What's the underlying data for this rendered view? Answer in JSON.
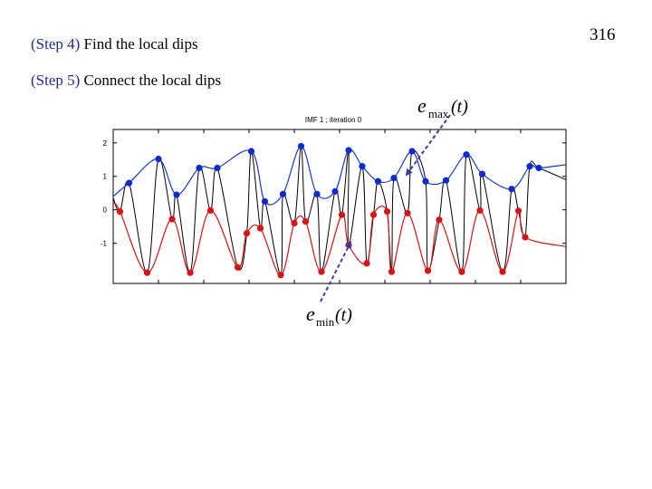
{
  "page_number": "316",
  "steps": [
    {
      "tag": "(Step 4)",
      "text": "Find the local dips"
    },
    {
      "tag": "(Step 5)",
      "text": "Connect the local dips"
    }
  ],
  "colors": {
    "signal": "#000000",
    "upper_envelope": "#1a37c8",
    "lower_envelope": "#d21414",
    "max_marker": "#0a2ad8",
    "min_marker": "#e01010",
    "step_tag": "#1f2a8c",
    "arrow": "#3a3aa8"
  },
  "chart_data": {
    "type": "line",
    "title": "IMF 1 ;   iteration 0",
    "xlabel": "",
    "ylabel": "",
    "ylim": [
      -2.2,
      2.4
    ],
    "xlim": [
      0,
      10
    ],
    "yticks": [
      "2",
      "1",
      "0",
      "-1"
    ],
    "ytick_values": [
      2,
      1,
      0,
      -1
    ],
    "grid": false,
    "series": [
      {
        "role": "local maxima",
        "points": [
          [
            0.35,
            0.8
          ],
          [
            1.0,
            1.52
          ],
          [
            1.4,
            0.45
          ],
          [
            1.9,
            1.25
          ],
          [
            2.3,
            1.25
          ],
          [
            3.05,
            1.75
          ],
          [
            3.35,
            0.25
          ],
          [
            3.75,
            0.47
          ],
          [
            4.15,
            1.9
          ],
          [
            4.5,
            0.47
          ],
          [
            4.9,
            0.55
          ],
          [
            5.2,
            1.78
          ],
          [
            5.5,
            1.3
          ],
          [
            5.85,
            0.85
          ],
          [
            6.2,
            0.95
          ],
          [
            6.6,
            1.75
          ],
          [
            6.9,
            0.85
          ],
          [
            7.35,
            0.88
          ],
          [
            7.8,
            1.65
          ],
          [
            8.15,
            1.07
          ],
          [
            8.8,
            0.62
          ],
          [
            9.2,
            1.3
          ],
          [
            9.4,
            1.25
          ]
        ]
      },
      {
        "role": "local minima",
        "points": [
          [
            0.15,
            -0.05
          ],
          [
            0.75,
            -1.88
          ],
          [
            1.3,
            -0.28
          ],
          [
            1.7,
            -1.88
          ],
          [
            2.15,
            -0.02
          ],
          [
            2.75,
            -1.72
          ],
          [
            2.95,
            -0.7
          ],
          [
            3.25,
            -0.55
          ],
          [
            3.7,
            -1.95
          ],
          [
            4.0,
            -0.4
          ],
          [
            4.25,
            -0.35
          ],
          [
            4.6,
            -1.85
          ],
          [
            5.05,
            -0.15
          ],
          [
            5.2,
            -1.05
          ],
          [
            5.6,
            -1.6
          ],
          [
            5.75,
            -0.15
          ],
          [
            6.05,
            -0.05
          ],
          [
            6.15,
            -1.85
          ],
          [
            6.5,
            -0.1
          ],
          [
            6.95,
            -1.82
          ],
          [
            7.2,
            -0.3
          ],
          [
            7.7,
            -1.85
          ],
          [
            8.1,
            -0.02
          ],
          [
            8.6,
            -1.85
          ],
          [
            8.95,
            -0.03
          ],
          [
            9.1,
            -0.82
          ]
        ]
      }
    ],
    "annotations": [
      {
        "label": "e",
        "subscript": "max",
        "argument": "(t)"
      },
      {
        "label": "e",
        "subscript": "min",
        "argument": "(t)"
      }
    ]
  }
}
